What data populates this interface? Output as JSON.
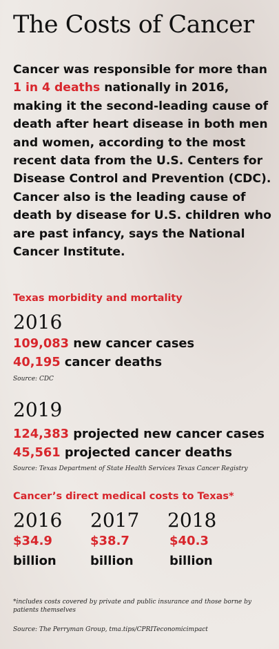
{
  "title": "The Costs of Cancer",
  "intro": {
    "before": "Cancer was responsible for more than ",
    "highlight": "1 in 4 deaths",
    "after": " nationally in 2016, making it the second-leading cause of death after heart disease in both men and women, according to the most recent data from the U.S. Centers for Disease Control and Prevention (CDC). Cancer also is the leading cause of death by disease for U.S. children who are past infancy, says the National Cancer Institute."
  },
  "morbidity": {
    "heading": "Texas morbidity and mortality",
    "y2016": {
      "year": "2016",
      "cases_num": "109,083",
      "cases_label": " new cancer cases",
      "deaths_num": "40,195",
      "deaths_label": " cancer deaths",
      "source": "Source: CDC"
    },
    "y2019": {
      "year": "2019",
      "cases_num": "124,383",
      "cases_label": " projected new cancer cases",
      "deaths_num": "45,561",
      "deaths_label": " projected cancer deaths",
      "source": "Source: Texas Department of State Health Services Texas Cancer Registry"
    }
  },
  "costs": {
    "heading": "Cancer’s direct medical costs to Texas*",
    "items": [
      {
        "year": "2016",
        "amount": "$34.9",
        "unit": "billion"
      },
      {
        "year": "2017",
        "amount": "$38.7",
        "unit": "billion"
      },
      {
        "year": "2018",
        "amount": "$40.3",
        "unit": "billion"
      }
    ],
    "footnote": "*includes costs covered by private and public insurance and those borne by patients themselves",
    "source": "Source: The Perryman Group, tma.tips/CPRITeconomicimpact"
  },
  "colors": {
    "accent": "#d8262c",
    "text": "#111111"
  }
}
